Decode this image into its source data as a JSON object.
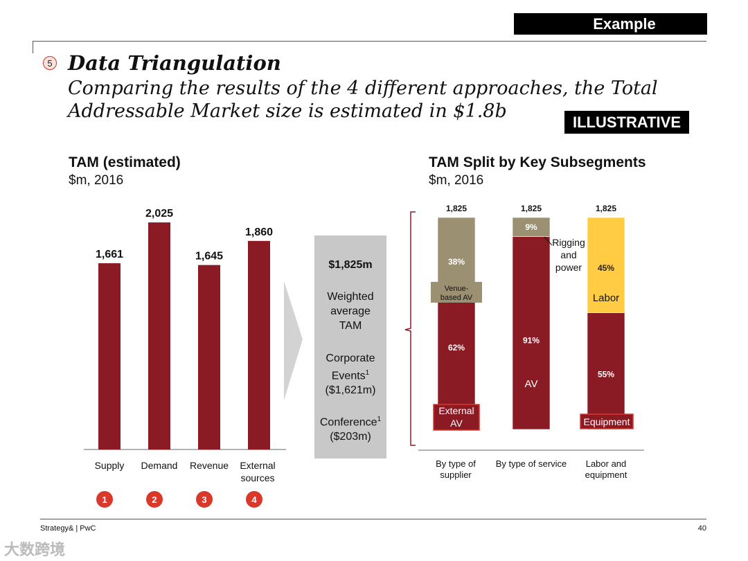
{
  "header": {
    "badge": "Example",
    "step_number": "5",
    "title": "Data Triangulation",
    "subtitle": "Comparing the results of the 4 different approaches, the Total Addressable Market size is estimated in $1.8b",
    "illustrative_badge": "ILLUSTRATIVE"
  },
  "left_section": {
    "title": "TAM (estimated)",
    "subtitle": "$m, 2016"
  },
  "summary": {
    "total": "$1,825m",
    "weighted_label": "Weighted average TAM",
    "corporate_label": "Corporate Events",
    "corporate_sup": "1",
    "corporate_value": "($1,621m)",
    "conference_label": "Conference",
    "conference_sup": "1",
    "conference_value": "($203m)"
  },
  "right_section": {
    "title": "TAM Split by Key Subsegments",
    "subtitle": "$m, 2016"
  },
  "chart_data": [
    {
      "type": "bar",
      "title": "TAM (estimated)",
      "ylabel": "$m, 2016",
      "categories": [
        "Supply",
        "Demand",
        "Revenue",
        "External sources"
      ],
      "values": [
        1661,
        2025,
        1645,
        1860
      ],
      "value_labels": [
        "1,661",
        "2,025",
        "1,645",
        "1,860"
      ],
      "markers": [
        "1",
        "2",
        "3",
        "4"
      ],
      "ylim": [
        0,
        2100
      ],
      "color": "#8a1a24",
      "marker_color": "#d9382b"
    },
    {
      "type": "bar",
      "stacked": true,
      "percent": true,
      "title": "TAM Split by Key Subsegments",
      "ylabel": "$m, 2016",
      "categories": [
        "By type of supplier",
        "By type of service",
        "Labor and equipment"
      ],
      "totals": [
        "1,825",
        "1,825",
        "1,825"
      ],
      "bars": [
        {
          "segments": [
            {
              "pct": 62,
              "label": "62%",
              "name": "External AV",
              "color": "#8a1a24"
            },
            {
              "pct": 38,
              "label": "38%",
              "name": "Venue-based AV",
              "color": "#9c9073"
            }
          ]
        },
        {
          "segments": [
            {
              "pct": 91,
              "label": "91%",
              "name": "AV",
              "color": "#8a1a24"
            },
            {
              "pct": 9,
              "label": "9%",
              "name": "Rigging and power",
              "color": "#9c9073"
            }
          ]
        },
        {
          "segments": [
            {
              "pct": 55,
              "label": "55%",
              "name": "Equipment",
              "color": "#8a1a24"
            },
            {
              "pct": 45,
              "label": "45%",
              "name": "Labor",
              "color": "#ffcc44"
            }
          ]
        }
      ]
    }
  ],
  "footer": {
    "source": "Strategy& | PwC",
    "page": "40",
    "watermark": "大数跨境"
  }
}
